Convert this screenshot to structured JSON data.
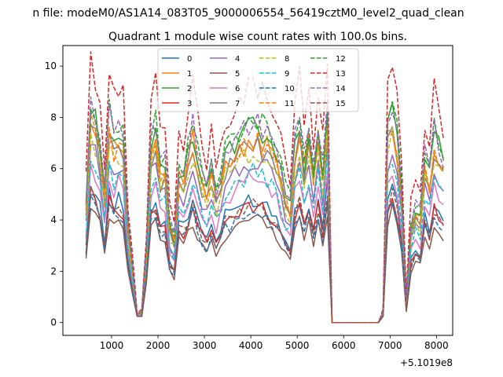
{
  "figure": {
    "suptitle": "n file: modeM0/AS1A14_083T05_9000006554_56419cztM0_level2_quad_clean",
    "offset_label": "+5.1019e8"
  },
  "chart_data": {
    "type": "line",
    "title": "Quadrant 1 module wise count rates with 100.0s bins.",
    "xlabel": "",
    "ylabel": "",
    "xlim": [
      -50,
      8350
    ],
    "ylim": [
      -0.5,
      10.8
    ],
    "x_ticks": [
      1000,
      2000,
      3000,
      4000,
      5000,
      6000,
      7000,
      8000
    ],
    "y_ticks": [
      0,
      2,
      4,
      6,
      8,
      10
    ],
    "grid": false,
    "legend": "top-center",
    "x": [
      450,
      550,
      650,
      750,
      850,
      950,
      1050,
      1150,
      1250,
      1350,
      1450,
      1550,
      1650,
      1750,
      1850,
      1950,
      2050,
      2150,
      2250,
      2350,
      2450,
      2550,
      2650,
      2750,
      2850,
      2950,
      3050,
      3150,
      3250,
      3350,
      3450,
      3550,
      3650,
      3750,
      3850,
      3950,
      4050,
      4150,
      4250,
      4350,
      4450,
      4550,
      4650,
      4750,
      4850,
      4950,
      5050,
      5150,
      5250,
      5350,
      5450,
      5550,
      5650,
      5750,
      5850,
      5950,
      6050,
      6150,
      6250,
      6350,
      6450,
      6550,
      6650,
      6750,
      6850,
      6950,
      7050,
      7150,
      7250,
      7350,
      7450,
      7550,
      7650,
      7750,
      7850,
      7950,
      8050,
      8150
    ],
    "base_profile": [
      0.55,
      1.0,
      0.95,
      0.85,
      0.6,
      0.95,
      0.85,
      0.9,
      0.85,
      0.45,
      0.25,
      0.03,
      0.05,
      0.35,
      0.85,
      0.9,
      0.7,
      0.75,
      0.45,
      0.4,
      0.72,
      0.7,
      0.78,
      0.9,
      0.78,
      0.68,
      0.62,
      0.72,
      0.6,
      0.68,
      0.78,
      0.8,
      0.83,
      0.86,
      0.88,
      0.9,
      0.91,
      0.9,
      0.88,
      0.86,
      0.82,
      0.78,
      0.7,
      0.6,
      0.55,
      0.82,
      0.92,
      0.75,
      0.88,
      0.7,
      0.9,
      0.7,
      1.0,
      0.0,
      0.0,
      0.0,
      0.0,
      0.0,
      0.0,
      0.0,
      0.0,
      0.0,
      0.0,
      0.0,
      0.05,
      0.9,
      1.0,
      0.85,
      0.6,
      0.1,
      0.45,
      0.55,
      0.5,
      0.78,
      0.68,
      0.88,
      0.82,
      0.75
    ],
    "series": [
      {
        "name": "0",
        "peak": 5.3,
        "color": "#1f77b4",
        "style": "solid"
      },
      {
        "name": "1",
        "peak": 7.9,
        "color": "#ff7f0e",
        "style": "solid"
      },
      {
        "name": "2",
        "peak": 8.3,
        "color": "#2ca02c",
        "style": "solid"
      },
      {
        "name": "3",
        "peak": 5.0,
        "color": "#d62728",
        "style": "solid"
      },
      {
        "name": "4",
        "peak": 6.9,
        "color": "#9467bd",
        "style": "solid"
      },
      {
        "name": "5",
        "peak": 4.4,
        "color": "#8c564b",
        "style": "solid"
      },
      {
        "name": "6",
        "peak": 6.1,
        "color": "#e377c2",
        "style": "solid"
      },
      {
        "name": "7",
        "peak": 7.6,
        "color": "#7f7f7f",
        "style": "solid"
      },
      {
        "name": "8",
        "peak": 7.3,
        "color": "#bcbd22",
        "style": "dashed"
      },
      {
        "name": "9",
        "peak": 6.4,
        "color": "#17becf",
        "style": "dashed"
      },
      {
        "name": "10",
        "peak": 4.7,
        "color": "#1f77b4",
        "style": "dashed"
      },
      {
        "name": "11",
        "peak": 7.8,
        "color": "#ff7f0e",
        "style": "dashed"
      },
      {
        "name": "12",
        "peak": 8.7,
        "color": "#2ca02c",
        "style": "dashed"
      },
      {
        "name": "13",
        "peak": 10.2,
        "color": "#d62728",
        "style": "dashed"
      },
      {
        "name": "14",
        "peak": 8.6,
        "color": "#9467bd",
        "style": "dashed"
      },
      {
        "name": "15",
        "peak": 5.0,
        "color": "#8c564b",
        "style": "dashed"
      }
    ]
  }
}
